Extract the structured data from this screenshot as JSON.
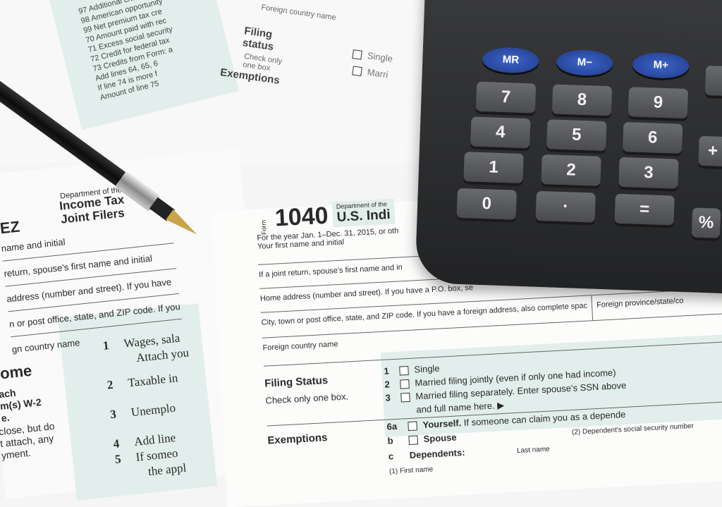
{
  "background_form_top": {
    "line_numbers": [
      "97",
      "98",
      "99",
      "70",
      "71",
      "72",
      "73"
    ],
    "lines": [
      "Additional child tax cred",
      "American opportunity",
      "Net premium tax cre",
      "Amount paid with rec",
      "Excess social security",
      "Credit for federal tax",
      "Credits from Form: a",
      "Add lines 64, 65, 6",
      "If line 74 is more f",
      "Amount of line 75"
    ],
    "filing_status": "Filing status",
    "check_only": "Check only one box",
    "exemptions": "Exemptions",
    "foreign_country": "Foreign country name",
    "single": "Single",
    "married": "Marri"
  },
  "left_form": {
    "form_suffix": "EZ",
    "department": "Department of the",
    "title_1": "Income Tax",
    "title_2": "Joint Filers",
    "lines": [
      "name and initial",
      "return, spouse's first name and initial",
      "address (number and street). If you have",
      "n or post office, state, and ZIP code. If you",
      "gn country name"
    ],
    "income": "ome",
    "income_sub": [
      "ach",
      "m(s) W-2",
      "e."
    ],
    "enclose": [
      "close, but do",
      "t attach, any",
      "yment."
    ],
    "items": [
      {
        "num": "1",
        "text": "Wages, sala",
        "sub": "Attach you"
      },
      {
        "num": "2",
        "text": "Taxable in"
      },
      {
        "num": "3",
        "text": "Unemplo"
      },
      {
        "num": "4",
        "text": "Add line"
      },
      {
        "num": "5",
        "text": "If someo",
        "sub": "the appl"
      }
    ]
  },
  "main_form": {
    "form_label": "Form",
    "form_number": "1040",
    "department": "Department of the",
    "title": "U.S. Indi",
    "year_line": "For the year Jan. 1–Dec. 31, 2015, or oth",
    "fields": [
      "Your first name and initial",
      "If a joint return, spouse's first name and in",
      "Home address (number and street). If you have a P.O. box, se",
      "City, town or post office, state, and ZIP code. If you have a foreign address, also complete spac",
      "Foreign country name"
    ],
    "foreign_province": "Foreign province/state/co",
    "filing_status": {
      "heading": "Filing Status",
      "note": "Check only one box.",
      "options": [
        {
          "num": "1",
          "label": "Single"
        },
        {
          "num": "2",
          "label": "Married filing jointly (even if only one had income)"
        },
        {
          "num": "3",
          "label": "Married filing separately. Enter spouse's SSN above",
          "cont": "and full name here. ▶"
        }
      ]
    },
    "exemptions": {
      "heading": "Exemptions",
      "items": [
        {
          "num": "6a",
          "label": "Yourself.",
          "rest": "If someone can claim you as a depende"
        },
        {
          "num": "b",
          "label": "Spouse"
        },
        {
          "num": "c",
          "label": "Dependents:"
        }
      ],
      "first_name": "(1) First name",
      "last_name": "Last name",
      "ssn_col": "(2) Dependent's social security number"
    }
  },
  "calculator": {
    "memory_keys": [
      "MR",
      "M−",
      "M+"
    ],
    "keys": [
      [
        "7",
        "8",
        "9"
      ],
      [
        "4",
        "5",
        "6"
      ],
      [
        "1",
        "2",
        "3"
      ],
      [
        "0",
        "·",
        "="
      ]
    ],
    "edge_keys": [
      "",
      "+",
      "%"
    ],
    "memory_color": "#2a4fb0",
    "body_color": "#2c2d2f"
  }
}
